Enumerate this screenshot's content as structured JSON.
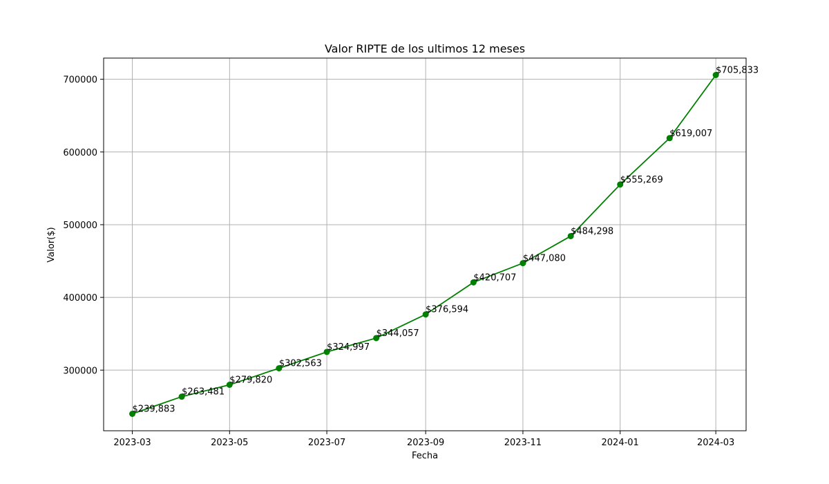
{
  "chart_data": {
    "type": "line",
    "title": "Valor RIPTE de los ultimos 12 meses",
    "xlabel": "Fecha",
    "ylabel": "Valor($)",
    "x": [
      "2023-03-01",
      "2023-04-01",
      "2023-05-01",
      "2023-06-01",
      "2023-07-01",
      "2023-08-01",
      "2023-09-01",
      "2023-10-01",
      "2023-11-01",
      "2023-12-01",
      "2024-01-01",
      "2024-02-01",
      "2024-03-01"
    ],
    "values": [
      239883,
      263481,
      279820,
      302563,
      324997,
      344057,
      376594,
      420707,
      447080,
      484298,
      555269,
      619007,
      705833
    ],
    "data_labels": [
      "$239,883",
      "$263,481",
      "$279,820",
      "$302,563",
      "$324,997",
      "$344,057",
      "$376,594",
      "$420,707",
      "$447,080",
      "$484,298",
      "$555,269",
      "$619,007",
      "$705,833"
    ],
    "x_ticks": [
      "2023-03",
      "2023-05",
      "2023-07",
      "2023-09",
      "2023-11",
      "2024-01",
      "2024-03"
    ],
    "x_tick_dates": [
      "2023-03-01",
      "2023-05-01",
      "2023-07-01",
      "2023-09-01",
      "2023-11-01",
      "2024-01-01",
      "2024-03-01"
    ],
    "y_ticks": [
      300000,
      400000,
      500000,
      600000,
      700000
    ],
    "y_tick_labels": [
      "300000",
      "400000",
      "500000",
      "600000",
      "700000"
    ],
    "xlim": [
      "2023-02-11",
      "2024-03-20"
    ],
    "ylim": [
      216586,
      729130
    ],
    "grid": true,
    "line_color": "#008000",
    "marker": "circle"
  }
}
